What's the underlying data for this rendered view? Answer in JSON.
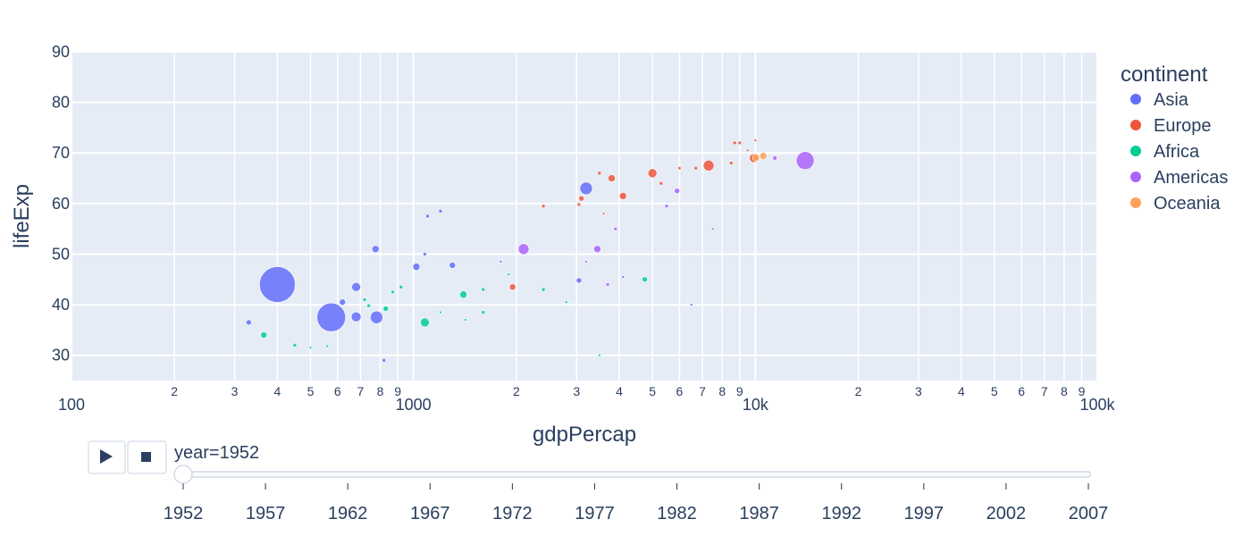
{
  "chart_data": {
    "type": "scatter",
    "xlabel": "gdpPercap",
    "ylabel": "lifeExp",
    "x_scale": "log",
    "xlim": [
      100,
      100000
    ],
    "ylim": [
      25,
      90
    ],
    "x_major_ticks": [
      {
        "value": 100,
        "label": "100"
      },
      {
        "value": 1000,
        "label": "1000"
      },
      {
        "value": 10000,
        "label": "10k"
      },
      {
        "value": 100000,
        "label": "100k"
      }
    ],
    "x_minor_ticks": [
      {
        "value": 200,
        "label": "2"
      },
      {
        "value": 300,
        "label": "3"
      },
      {
        "value": 400,
        "label": "4"
      },
      {
        "value": 500,
        "label": "5"
      },
      {
        "value": 600,
        "label": "6"
      },
      {
        "value": 700,
        "label": "7"
      },
      {
        "value": 800,
        "label": "8"
      },
      {
        "value": 900,
        "label": "9"
      },
      {
        "value": 2000,
        "label": "2"
      },
      {
        "value": 3000,
        "label": "3"
      },
      {
        "value": 4000,
        "label": "4"
      },
      {
        "value": 5000,
        "label": "5"
      },
      {
        "value": 6000,
        "label": "6"
      },
      {
        "value": 7000,
        "label": "7"
      },
      {
        "value": 8000,
        "label": "8"
      },
      {
        "value": 9000,
        "label": "9"
      },
      {
        "value": 20000,
        "label": "2"
      },
      {
        "value": 30000,
        "label": "3"
      },
      {
        "value": 40000,
        "label": "4"
      },
      {
        "value": 50000,
        "label": "5"
      },
      {
        "value": 60000,
        "label": "6"
      },
      {
        "value": 70000,
        "label": "7"
      },
      {
        "value": 80000,
        "label": "8"
      },
      {
        "value": 90000,
        "label": "9"
      }
    ],
    "y_ticks": [
      30,
      40,
      50,
      60,
      70,
      80,
      90
    ],
    "grid": true,
    "legend_title": "continent",
    "legend_position": "right",
    "series": [
      {
        "name": "Asia",
        "color": "#636efa",
        "points": [
          {
            "x": 400,
            "y": 44.0,
            "size": 20
          },
          {
            "x": 575,
            "y": 37.5,
            "size": 16
          },
          {
            "x": 3200,
            "y": 63.0,
            "size": 7
          },
          {
            "x": 780,
            "y": 37.5,
            "size": 7
          },
          {
            "x": 680,
            "y": 37.6,
            "size": 5.5
          },
          {
            "x": 680,
            "y": 43.5,
            "size": 5
          },
          {
            "x": 775,
            "y": 51.0,
            "size": 4
          },
          {
            "x": 1020,
            "y": 47.5,
            "size": 4
          },
          {
            "x": 1300,
            "y": 47.8,
            "size": 3.5
          },
          {
            "x": 620,
            "y": 40.5,
            "size": 3.5
          },
          {
            "x": 330,
            "y": 36.5,
            "size": 3
          },
          {
            "x": 3050,
            "y": 44.8,
            "size": 3
          },
          {
            "x": 1080,
            "y": 50.0,
            "size": 2
          },
          {
            "x": 1100,
            "y": 57.5,
            "size": 2
          },
          {
            "x": 1200,
            "y": 58.5,
            "size": 2
          },
          {
            "x": 820,
            "y": 29.0,
            "size": 2
          },
          {
            "x": 1800,
            "y": 48.5,
            "size": 1.5
          },
          {
            "x": 6500,
            "y": 40.0,
            "size": 1.5
          },
          {
            "x": 4100,
            "y": 45.5,
            "size": 1.5
          }
        ]
      },
      {
        "name": "Europe",
        "color": "#ef553b",
        "points": [
          {
            "x": 7300,
            "y": 67.5,
            "size": 6
          },
          {
            "x": 5000,
            "y": 66.0,
            "size": 5
          },
          {
            "x": 9900,
            "y": 69.0,
            "size": 5
          },
          {
            "x": 4100,
            "y": 61.5,
            "size": 4
          },
          {
            "x": 3800,
            "y": 65.0,
            "size": 4
          },
          {
            "x": 1950,
            "y": 43.5,
            "size": 3.5
          },
          {
            "x": 3100,
            "y": 61.0,
            "size": 3
          },
          {
            "x": 5300,
            "y": 64.0,
            "size": 2
          },
          {
            "x": 6700,
            "y": 67.0,
            "size": 2
          },
          {
            "x": 6000,
            "y": 67.0,
            "size": 1.8
          },
          {
            "x": 8500,
            "y": 68.0,
            "size": 2
          },
          {
            "x": 8700,
            "y": 72.0,
            "size": 2
          },
          {
            "x": 9000,
            "y": 72.0,
            "size": 2
          },
          {
            "x": 3050,
            "y": 59.8,
            "size": 2
          },
          {
            "x": 2400,
            "y": 59.5,
            "size": 2
          },
          {
            "x": 3500,
            "y": 66.0,
            "size": 2
          },
          {
            "x": 3600,
            "y": 58.0,
            "size": 1.5
          },
          {
            "x": 10000,
            "y": 72.5,
            "size": 1.5
          },
          {
            "x": 9500,
            "y": 70.5,
            "size": 1.5
          }
        ]
      },
      {
        "name": "Africa",
        "color": "#00cc96",
        "points": [
          {
            "x": 1080,
            "y": 36.5,
            "size": 5
          },
          {
            "x": 4750,
            "y": 45.0,
            "size": 3
          },
          {
            "x": 1400,
            "y": 42.0,
            "size": 4
          },
          {
            "x": 365,
            "y": 34.0,
            "size": 3.5
          },
          {
            "x": 830,
            "y": 39.2,
            "size": 3
          },
          {
            "x": 2400,
            "y": 43.0,
            "size": 2
          },
          {
            "x": 1600,
            "y": 38.5,
            "size": 2
          },
          {
            "x": 1600,
            "y": 43.0,
            "size": 2
          },
          {
            "x": 720,
            "y": 41.0,
            "size": 2
          },
          {
            "x": 740,
            "y": 39.8,
            "size": 2
          },
          {
            "x": 870,
            "y": 42.5,
            "size": 2
          },
          {
            "x": 920,
            "y": 43.5,
            "size": 2
          },
          {
            "x": 450,
            "y": 32.0,
            "size": 2
          },
          {
            "x": 500,
            "y": 31.5,
            "size": 1.5
          },
          {
            "x": 560,
            "y": 31.8,
            "size": 1.5
          },
          {
            "x": 1200,
            "y": 38.5,
            "size": 1.5
          },
          {
            "x": 1420,
            "y": 37.0,
            "size": 1.5
          },
          {
            "x": 1900,
            "y": 46.0,
            "size": 1.5
          },
          {
            "x": 3500,
            "y": 30.0,
            "size": 1.5
          },
          {
            "x": 2800,
            "y": 40.5,
            "size": 1.5
          }
        ]
      },
      {
        "name": "Americas",
        "color": "#ab63fa",
        "points": [
          {
            "x": 13990,
            "y": 68.5,
            "size": 10
          },
          {
            "x": 2100,
            "y": 51.0,
            "size": 6
          },
          {
            "x": 3450,
            "y": 51.0,
            "size": 4
          },
          {
            "x": 5900,
            "y": 62.5,
            "size": 3
          },
          {
            "x": 11400,
            "y": 69.0,
            "size": 2.5
          },
          {
            "x": 3900,
            "y": 55.0,
            "size": 2
          },
          {
            "x": 3700,
            "y": 44.0,
            "size": 2
          },
          {
            "x": 5500,
            "y": 59.5,
            "size": 2
          },
          {
            "x": 7500,
            "y": 55.0,
            "size": 1.5
          },
          {
            "x": 3200,
            "y": 48.5,
            "size": 1.5
          }
        ]
      },
      {
        "name": "Oceania",
        "color": "#ffa15a",
        "points": [
          {
            "x": 10040,
            "y": 69.1,
            "size": 4
          },
          {
            "x": 10550,
            "y": 69.4,
            "size": 4
          }
        ]
      }
    ]
  },
  "animation": {
    "current_label": "year=1952",
    "play_icon": "play-icon",
    "stop_icon": "stop-icon",
    "steps": [
      "1952",
      "1957",
      "1962",
      "1967",
      "1972",
      "1977",
      "1982",
      "1987",
      "1992",
      "1997",
      "2002",
      "2007"
    ],
    "active_index": 0
  }
}
